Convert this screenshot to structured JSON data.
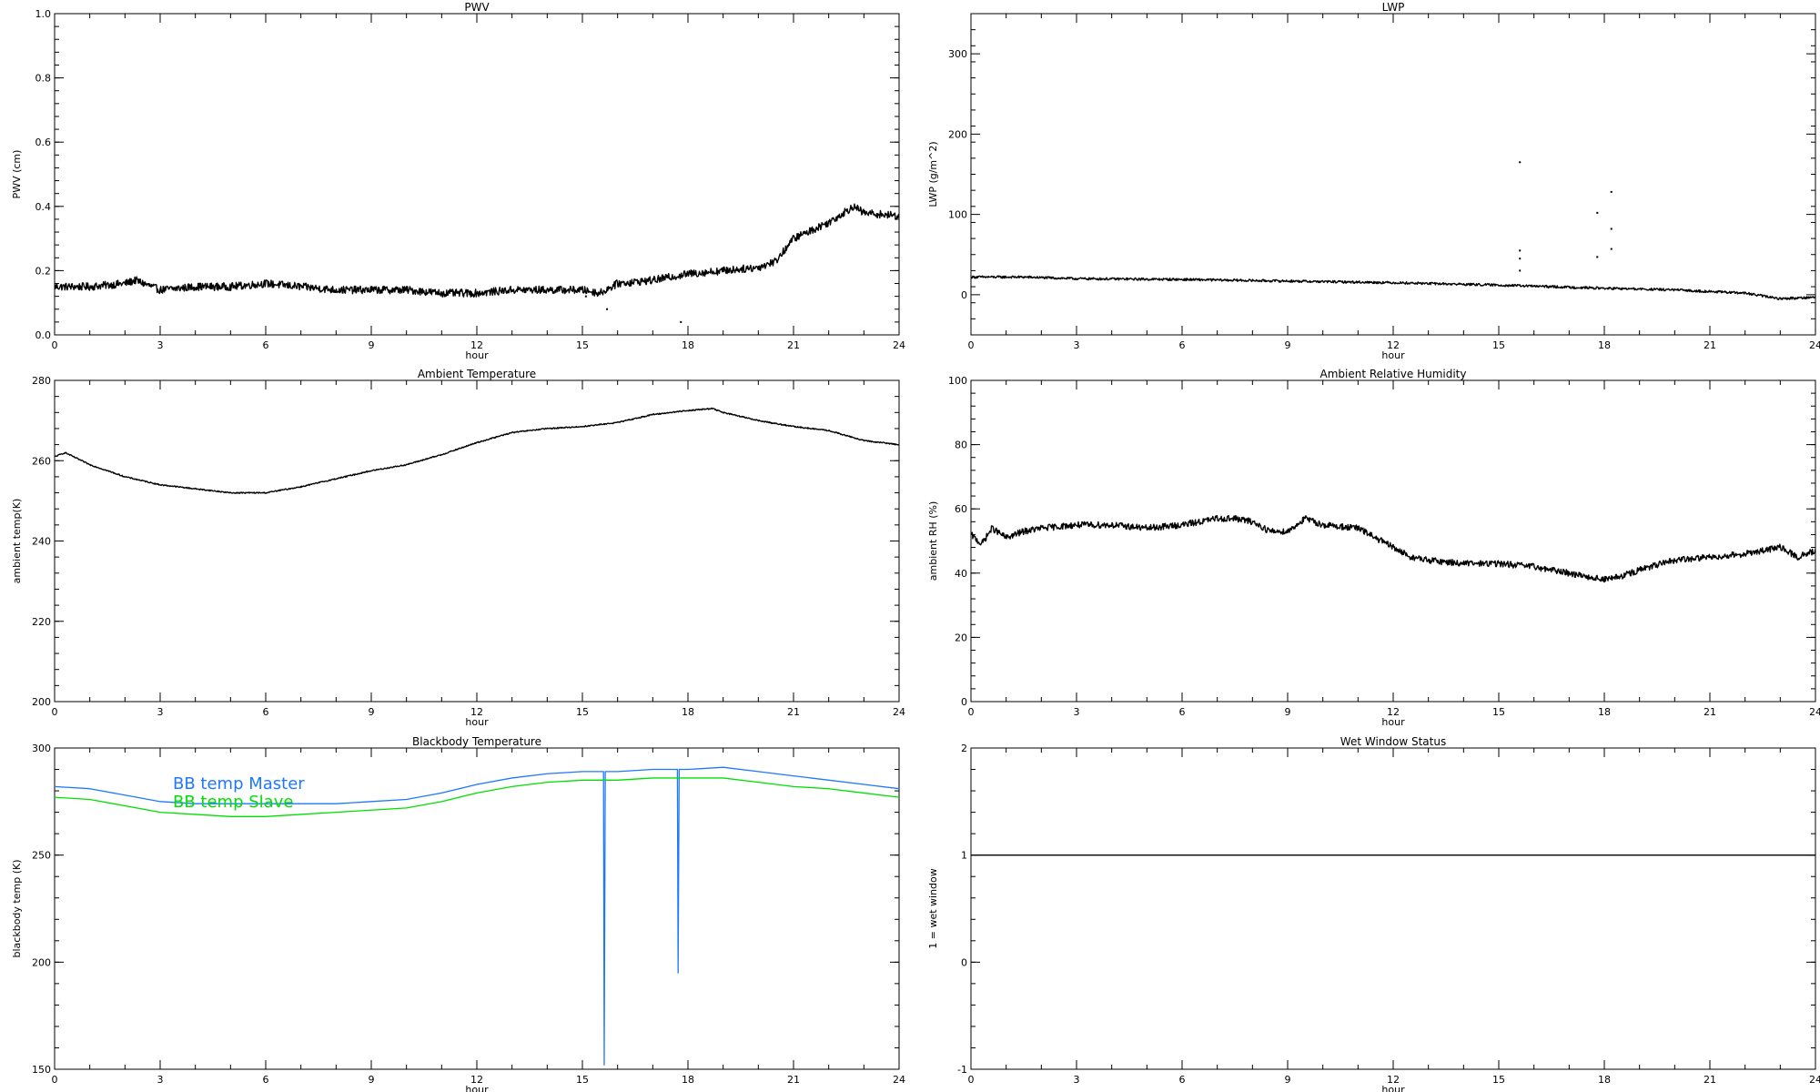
{
  "chart_data": [
    {
      "type": "scatter",
      "title": "PWV",
      "xlabel": "hour",
      "ylabel": "PWV (cm)",
      "xlim": [
        0,
        24
      ],
      "ylim": [
        0,
        1.0
      ],
      "xticks": [
        0,
        3,
        6,
        9,
        12,
        15,
        18,
        21,
        24
      ],
      "xtick_labels": [
        "0",
        "3",
        "6",
        "9",
        "12",
        "15",
        "18",
        "21",
        "24"
      ],
      "yticks": [
        0,
        0.2,
        0.4,
        0.6,
        0.8,
        1.0
      ],
      "ytick_labels": [
        "0.0",
        "0.2",
        "0.4",
        "0.6",
        "0.8",
        "1.0"
      ],
      "series": [
        {
          "color": "#000000",
          "noise": 0.012,
          "x": [
            0,
            1,
            2,
            2.3,
            3,
            4,
            5,
            6,
            7,
            8,
            9,
            10,
            11,
            12,
            13,
            14,
            15,
            15.5,
            16,
            17,
            18,
            19,
            20,
            20.5,
            21,
            22,
            22.7,
            23,
            24
          ],
          "y": [
            0.15,
            0.15,
            0.16,
            0.17,
            0.14,
            0.15,
            0.15,
            0.16,
            0.15,
            0.14,
            0.14,
            0.14,
            0.13,
            0.13,
            0.14,
            0.14,
            0.14,
            0.13,
            0.16,
            0.17,
            0.19,
            0.2,
            0.21,
            0.23,
            0.3,
            0.35,
            0.4,
            0.38,
            0.37
          ]
        },
        {
          "color": "#000000",
          "outliers": true,
          "x": [
            15.7,
            17.8,
            15.1
          ],
          "y": [
            0.08,
            0.04,
            0.12
          ]
        }
      ]
    },
    {
      "type": "scatter",
      "title": "LWP",
      "xlabel": "hour",
      "ylabel": "LWP (g/m^2)",
      "xlim": [
        0,
        24
      ],
      "ylim": [
        -50,
        350
      ],
      "xticks": [
        0,
        3,
        6,
        9,
        12,
        15,
        18,
        21,
        24
      ],
      "xtick_labels": [
        "0",
        "3",
        "6",
        "9",
        "12",
        "15",
        "18",
        "21",
        "24"
      ],
      "yticks": [
        0,
        100,
        200,
        300
      ],
      "ytick_labels": [
        "0",
        "100",
        "200",
        "300"
      ],
      "series": [
        {
          "color": "#000000",
          "noise": 1.5,
          "x": [
            0,
            1.5,
            3,
            6,
            9,
            12,
            15,
            18,
            20,
            22,
            23,
            24
          ],
          "y": [
            22,
            22,
            20,
            19,
            17,
            15,
            12,
            8,
            6,
            2,
            -5,
            -3
          ]
        },
        {
          "color": "#000000",
          "outliers": true,
          "x": [
            15.6,
            15.6,
            15.6,
            15.6,
            17.8,
            17.8,
            18.2,
            18.2,
            18.2
          ],
          "y": [
            165,
            55,
            45,
            30,
            102,
            47,
            128,
            82,
            57
          ]
        }
      ]
    },
    {
      "type": "line",
      "title": "Ambient Temperature",
      "xlabel": "hour",
      "ylabel": "ambient temp(K)",
      "xlim": [
        0,
        24
      ],
      "ylim": [
        200,
        280
      ],
      "xticks": [
        0,
        3,
        6,
        9,
        12,
        15,
        18,
        21,
        24
      ],
      "xtick_labels": [
        "0",
        "3",
        "6",
        "9",
        "12",
        "15",
        "18",
        "21",
        "24"
      ],
      "yticks": [
        200,
        220,
        240,
        260,
        280
      ],
      "ytick_labels": [
        "200",
        "220",
        "240",
        "260",
        "280"
      ],
      "series": [
        {
          "color": "#000000",
          "noise": 0.15,
          "x": [
            0,
            0.3,
            1,
            2,
            3,
            4,
            5,
            6,
            7,
            8,
            9,
            10,
            11,
            12,
            13,
            14,
            15,
            16,
            17,
            18,
            18.7,
            19,
            20,
            21,
            22,
            23,
            24
          ],
          "y": [
            261,
            262,
            259,
            256,
            254,
            253,
            252,
            252,
            253.5,
            255.5,
            257.5,
            259,
            261.5,
            264.5,
            267,
            268,
            268.5,
            269.5,
            271.5,
            272.5,
            273,
            272,
            270,
            268.5,
            267.5,
            265,
            264
          ]
        }
      ]
    },
    {
      "type": "scatter",
      "title": "Ambient Relative Humidity",
      "xlabel": "hour",
      "ylabel": "ambient RH (%)",
      "xlim": [
        0,
        24
      ],
      "ylim": [
        0,
        100
      ],
      "xticks": [
        0,
        3,
        6,
        9,
        12,
        15,
        18,
        21,
        24
      ],
      "xtick_labels": [
        "0",
        "3",
        "6",
        "9",
        "12",
        "15",
        "18",
        "21",
        "24"
      ],
      "yticks": [
        0,
        20,
        40,
        60,
        80,
        100
      ],
      "ytick_labels": [
        "0",
        "20",
        "40",
        "60",
        "80",
        "100"
      ],
      "series": [
        {
          "color": "#000000",
          "noise": 1.0,
          "x": [
            0,
            0.3,
            0.6,
            1,
            1.5,
            2,
            3,
            4,
            5,
            6,
            7,
            7.5,
            8,
            8.5,
            9,
            9.5,
            10,
            11,
            12,
            12.5,
            13,
            14,
            15,
            16,
            17,
            18,
            18.5,
            19,
            20,
            21,
            22,
            23,
            23.5,
            24
          ],
          "y": [
            52,
            49,
            54,
            51,
            53,
            54,
            55,
            55,
            54,
            55,
            57,
            57,
            56,
            53,
            53,
            57,
            55,
            54,
            48,
            45,
            44,
            43,
            43,
            42,
            40,
            38,
            39,
            41,
            44,
            45,
            46,
            48,
            45,
            47
          ]
        }
      ]
    },
    {
      "type": "line",
      "title": "Blackbody Temperature",
      "xlabel": "hour",
      "ylabel": "blackbody temp (K)",
      "xlim": [
        0,
        24
      ],
      "ylim": [
        150,
        300
      ],
      "xticks": [
        0,
        3,
        6,
        9,
        12,
        15,
        18,
        21,
        24
      ],
      "xtick_labels": [
        "0",
        "3",
        "6",
        "9",
        "12",
        "15",
        "18",
        "21",
        "24"
      ],
      "yticks": [
        150,
        200,
        250,
        300
      ],
      "ytick_labels": [
        "150",
        "200",
        "250",
        "300"
      ],
      "legend": [
        "BB temp Master",
        "BB temp Slave"
      ],
      "series": [
        {
          "name": "BB temp Master",
          "color": "#1e78ff",
          "x": [
            0,
            1,
            2,
            3,
            4,
            5,
            6,
            7,
            8,
            9,
            10,
            11,
            12,
            13,
            14,
            15,
            15.6,
            15.62,
            15.65,
            16,
            17,
            17.7,
            17.72,
            17.75,
            18,
            19,
            20,
            21,
            22,
            23,
            24
          ],
          "y": [
            282,
            281,
            278,
            275,
            274,
            274,
            274,
            274,
            274,
            275,
            276,
            279,
            283,
            286,
            288,
            289,
            289,
            152,
            289,
            289,
            290,
            290,
            195,
            290,
            290,
            291,
            289,
            287,
            285,
            283,
            281
          ]
        },
        {
          "name": "BB temp Slave",
          "color": "#00e000",
          "x": [
            0,
            1,
            2,
            3,
            4,
            5,
            6,
            7,
            8,
            9,
            10,
            11,
            12,
            13,
            14,
            15,
            16,
            17,
            18,
            19,
            20,
            21,
            22,
            23,
            24
          ],
          "y": [
            277,
            276,
            273,
            270,
            269,
            268,
            268,
            269,
            270,
            271,
            272,
            275,
            279,
            282,
            284,
            285,
            285,
            286,
            286,
            286,
            284,
            282,
            281,
            279,
            277
          ]
        }
      ]
    },
    {
      "type": "line",
      "title": "Wet Window Status",
      "xlabel": "hour",
      "ylabel": "1 = wet window",
      "xlim": [
        0,
        24
      ],
      "ylim": [
        -1,
        2
      ],
      "xticks": [
        0,
        3,
        6,
        9,
        12,
        15,
        18,
        21,
        24
      ],
      "xtick_labels": [
        "0",
        "3",
        "6",
        "9",
        "12",
        "15",
        "18",
        "21",
        "24"
      ],
      "yticks": [
        -1,
        0,
        1,
        2
      ],
      "ytick_labels": [
        "-1",
        "0",
        "1",
        "2"
      ],
      "series": [
        {
          "color": "#000000",
          "x": [
            0,
            24
          ],
          "y": [
            1,
            1
          ]
        }
      ]
    }
  ]
}
